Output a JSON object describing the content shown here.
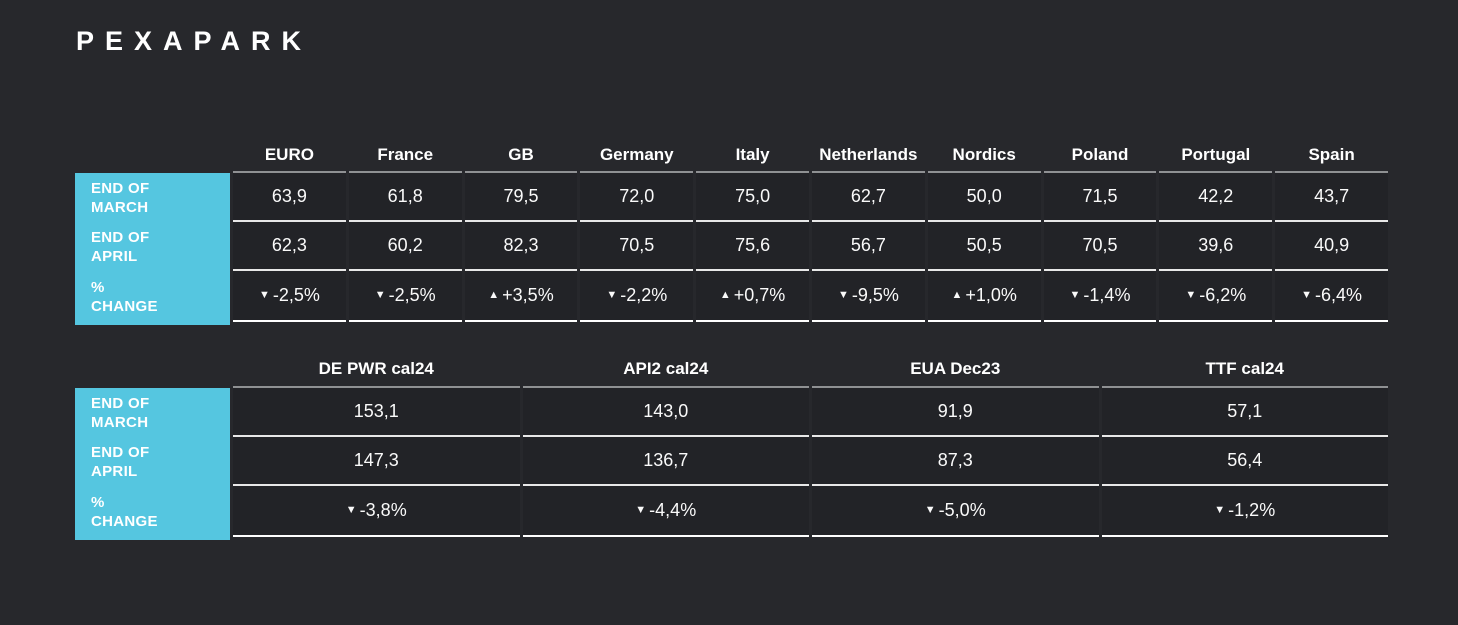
{
  "page": {
    "colors": {
      "background": "#27282C",
      "cell_background": "#222327",
      "accent": "#55C6E0",
      "text": "#FAFAFA",
      "row_line": "#E8E8E8",
      "header_line": "#8F9193",
      "bottom_line": "#FFFFFF"
    }
  },
  "logo": {
    "text": "PEXAPARK"
  },
  "icons": {
    "down": "▼",
    "up": "▲"
  },
  "chart_data": [
    {
      "type": "table",
      "columns": [
        "EURO",
        "France",
        "GB",
        "Germany",
        "Italy",
        "Netherlands",
        "Nordics",
        "Poland",
        "Portugal",
        "Spain"
      ],
      "rows": [
        {
          "id": "end-of-march",
          "label": "END OF MARCH",
          "label_lines": [
            "END OF",
            "MARCH"
          ],
          "values": [
            "63,9",
            "61,8",
            "79,5",
            "72,0",
            "75,0",
            "62,7",
            "50,0",
            "71,5",
            "42,2",
            "43,7"
          ]
        },
        {
          "id": "end-of-april",
          "label": "END OF APRIL",
          "label_lines": [
            "END OF",
            "APRIL"
          ],
          "values": [
            "62,3",
            "60,2",
            "82,3",
            "70,5",
            "75,6",
            "56,7",
            "50,5",
            "70,5",
            "39,6",
            "40,9"
          ]
        },
        {
          "id": "percent-change",
          "label": "% CHANGE",
          "label_lines": [
            "%",
            "CHANGE"
          ],
          "values": [
            {
              "direction": "down",
              "text": "-2,5%"
            },
            {
              "direction": "down",
              "text": "-2,5%"
            },
            {
              "direction": "up",
              "text": "+3,5%"
            },
            {
              "direction": "down",
              "text": "-2,2%"
            },
            {
              "direction": "up",
              "text": "+0,7%"
            },
            {
              "direction": "down",
              "text": "-9,5%"
            },
            {
              "direction": "up",
              "text": "+1,0%"
            },
            {
              "direction": "down",
              "text": "-1,4%"
            },
            {
              "direction": "down",
              "text": "-6,2%"
            },
            {
              "direction": "down",
              "text": "-6,4%"
            }
          ]
        }
      ]
    },
    {
      "type": "table",
      "columns": [
        "DE PWR cal24",
        "API2 cal24",
        "EUA Dec23",
        "TTF cal24"
      ],
      "rows": [
        {
          "id": "end-of-march",
          "label": "END OF MARCH",
          "label_lines": [
            "END OF",
            "MARCH"
          ],
          "values": [
            "153,1",
            "143,0",
            "91,9",
            "57,1"
          ]
        },
        {
          "id": "end-of-april",
          "label": "END OF APRIL",
          "label_lines": [
            "END OF",
            "APRIL"
          ],
          "values": [
            "147,3",
            "136,7",
            "87,3",
            "56,4"
          ]
        },
        {
          "id": "percent-change",
          "label": "% CHANGE",
          "label_lines": [
            "%",
            "CHANGE"
          ],
          "values": [
            {
              "direction": "down",
              "text": "-3,8%"
            },
            {
              "direction": "down",
              "text": "-4,4%"
            },
            {
              "direction": "down",
              "text": "-5,0%"
            },
            {
              "direction": "down",
              "text": "-1,2%"
            }
          ]
        }
      ]
    }
  ]
}
